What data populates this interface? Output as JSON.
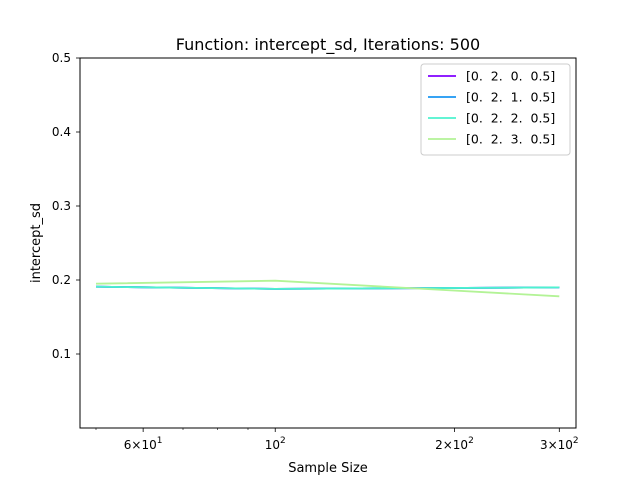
{
  "chart_data": {
    "type": "line",
    "title": "Function: intercept_sd, Iterations: 500",
    "xlabel": "Sample Size",
    "ylabel": "intercept_sd",
    "x_scale": "log",
    "xlim": [
      47,
      320
    ],
    "ylim": [
      0.0,
      0.5
    ],
    "x_ticks": [
      {
        "value": 60,
        "base": "6×10",
        "exp": "1"
      },
      {
        "value": 100,
        "base": "10",
        "exp": "2"
      },
      {
        "value": 200,
        "base": "2×10",
        "exp": "2"
      },
      {
        "value": 300,
        "base": "3×10",
        "exp": "2"
      }
    ],
    "x_minor_ticks": [
      50,
      70,
      80,
      90
    ],
    "y_ticks": [
      {
        "value": 0.1,
        "label": "0.1"
      },
      {
        "value": 0.2,
        "label": "0.2"
      },
      {
        "value": 0.3,
        "label": "0.3"
      },
      {
        "value": 0.4,
        "label": "0.4"
      },
      {
        "value": 0.5,
        "label": "0.5"
      }
    ],
    "x": [
      50,
      100,
      300
    ],
    "series": [
      {
        "name": "[0.  2.  0.  0.5]",
        "color": "#8000ff",
        "values": [
          0.191,
          0.188,
          0.19
        ]
      },
      {
        "name": "[0.  2.  1.  0.5]",
        "color": "#1996f3",
        "values": [
          0.191,
          0.188,
          0.19
        ]
      },
      {
        "name": "[0.  2.  2.  0.5]",
        "color": "#4df3ce",
        "values": [
          0.191,
          0.188,
          0.19
        ]
      },
      {
        "name": "[0.  2.  3.  0.5]",
        "color": "#b3f396",
        "values": [
          0.195,
          0.199,
          0.178
        ]
      }
    ],
    "legend": "top-right",
    "grid": false
  }
}
